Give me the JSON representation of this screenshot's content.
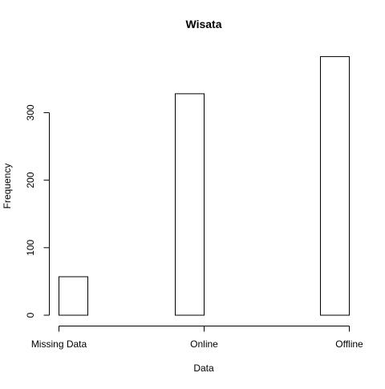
{
  "chart_data": {
    "type": "bar",
    "title": "Wisata",
    "xlabel": "Data",
    "ylabel": "Frequency",
    "categories": [
      "Missing Data",
      "Online",
      "Offline"
    ],
    "values": [
      57,
      328,
      383
    ],
    "ylim": [
      0,
      390
    ],
    "yticks": [
      0,
      100,
      200,
      300
    ],
    "ytick_labels": [
      "0",
      "100",
      "200",
      "300"
    ],
    "grid": false,
    "legend": "none",
    "colors": {
      "bar_fill": "#ffffff",
      "bar_stroke": "#000000",
      "axis": "#000000",
      "background": "#ffffff"
    }
  }
}
